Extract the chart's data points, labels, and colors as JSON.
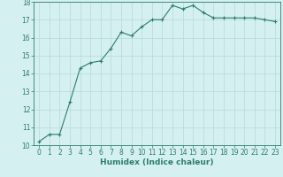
{
  "x": [
    0,
    1,
    2,
    3,
    4,
    5,
    6,
    7,
    8,
    9,
    10,
    11,
    12,
    13,
    14,
    15,
    16,
    17,
    18,
    19,
    20,
    21,
    22,
    23
  ],
  "y": [
    10.2,
    10.6,
    10.6,
    12.4,
    14.3,
    14.6,
    14.7,
    15.4,
    16.3,
    16.1,
    16.6,
    17.0,
    17.0,
    17.8,
    17.6,
    17.8,
    17.4,
    17.1,
    17.1,
    17.1,
    17.1,
    17.1,
    17.0,
    16.9
  ],
  "line_color": "#2e7d6e",
  "marker": "+",
  "marker_size": 3,
  "bg_color": "#d4f0f0",
  "grid_color": "#b8dada",
  "xlabel": "Humidex (Indice chaleur)",
  "ylim": [
    10,
    18
  ],
  "xlim": [
    -0.5,
    23.5
  ],
  "yticks": [
    10,
    11,
    12,
    13,
    14,
    15,
    16,
    17,
    18
  ],
  "xticks": [
    0,
    1,
    2,
    3,
    4,
    5,
    6,
    7,
    8,
    9,
    10,
    11,
    12,
    13,
    14,
    15,
    16,
    17,
    18,
    19,
    20,
    21,
    22,
    23
  ],
  "tick_fontsize": 5.5,
  "xlabel_fontsize": 6.5,
  "line_width": 0.8
}
